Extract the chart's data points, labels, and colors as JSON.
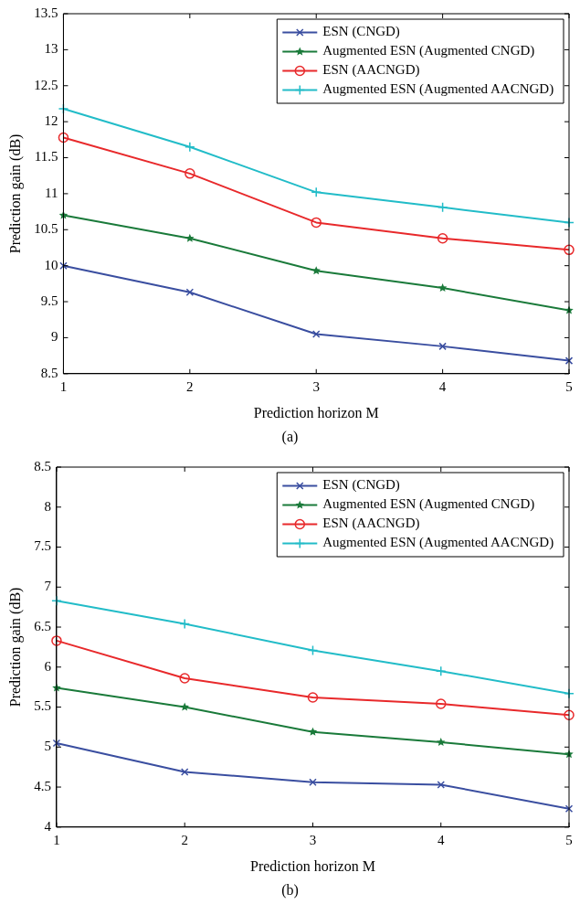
{
  "chart_data": [
    {
      "type": "line",
      "xlabel": "Prediction horizon M",
      "ylabel": "Prediction gain (dB)",
      "annotations": [
        "(a)"
      ],
      "x": [
        1,
        2,
        3,
        4,
        5
      ],
      "xlim": [
        1,
        5
      ],
      "xticks": [
        1,
        2,
        3,
        4,
        5
      ],
      "ylim": [
        8.5,
        13.5
      ],
      "yticks": [
        8.5,
        9,
        9.5,
        10,
        10.5,
        11,
        11.5,
        12,
        12.5,
        13,
        13.5
      ],
      "grid": false,
      "legend": "top right",
      "line_style": "solid",
      "series": [
        {
          "name": "ESN (CNGD)",
          "color": "#3a4ea0",
          "marker": "cross",
          "values": [
            10.0,
            9.63,
            9.05,
            8.88,
            8.68
          ]
        },
        {
          "name": "Augmented ESN (Augmented CNGD)",
          "color": "#1a7a3a",
          "marker": "star",
          "values": [
            10.7,
            10.38,
            9.93,
            9.69,
            9.38
          ]
        },
        {
          "name": "ESN (AACNGD)",
          "color": "#e8292b",
          "marker": "circle",
          "values": [
            11.78,
            11.28,
            10.6,
            10.38,
            10.22
          ]
        },
        {
          "name": "Augmented ESN (Augmented AACNGD)",
          "color": "#22bcc8",
          "marker": "plus",
          "values": [
            12.18,
            11.65,
            11.02,
            10.81,
            10.6
          ]
        }
      ]
    },
    {
      "type": "line",
      "xlabel": "Prediction horizon M",
      "ylabel": "Prediction gain (dB)",
      "annotations": [
        "(b)"
      ],
      "x": [
        1,
        2,
        3,
        4,
        5
      ],
      "xlim": [
        1,
        5
      ],
      "xticks": [
        1,
        2,
        3,
        4,
        5
      ],
      "ylim": [
        4,
        8.5
      ],
      "yticks": [
        4,
        4.5,
        5,
        5.5,
        6,
        6.5,
        7,
        7.5,
        8,
        8.5
      ],
      "grid": false,
      "legend": "top right",
      "line_style": "solid",
      "series": [
        {
          "name": "ESN (CNGD)",
          "color": "#3a4ea0",
          "marker": "cross",
          "values": [
            5.05,
            4.69,
            4.56,
            4.53,
            4.23
          ]
        },
        {
          "name": "Augmented ESN (Augmented CNGD)",
          "color": "#1a7a3a",
          "marker": "star",
          "values": [
            5.74,
            5.5,
            5.19,
            5.06,
            4.91
          ]
        },
        {
          "name": "ESN (AACNGD)",
          "color": "#e8292b",
          "marker": "circle",
          "values": [
            6.33,
            5.86,
            5.62,
            5.54,
            5.4
          ]
        },
        {
          "name": "Augmented ESN (Augmented AACNGD)",
          "color": "#22bcc8",
          "marker": "plus",
          "values": [
            6.83,
            6.54,
            6.21,
            5.95,
            5.67
          ]
        }
      ]
    }
  ]
}
